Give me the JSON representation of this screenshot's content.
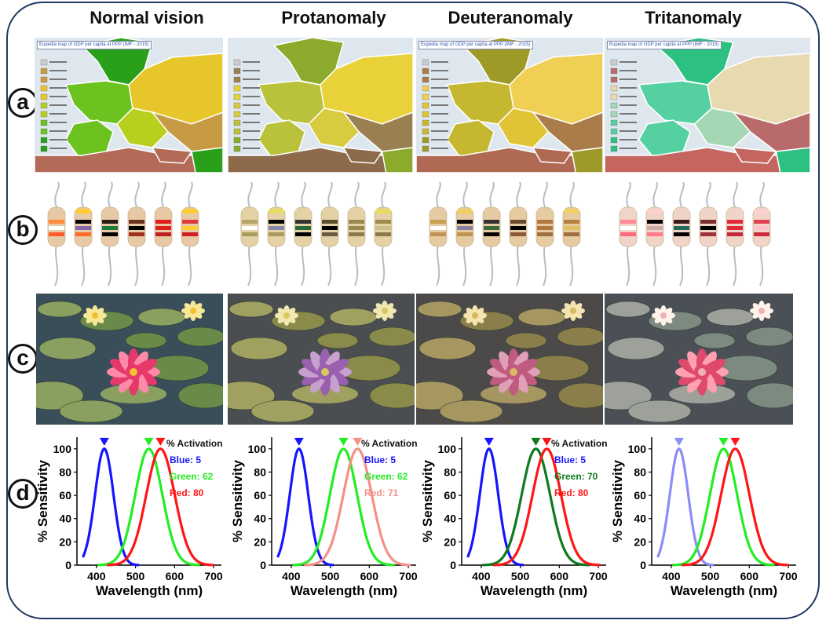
{
  "figure": {
    "columns": [
      {
        "id": "normal",
        "title": "Normal vision"
      },
      {
        "id": "prot",
        "title": "Protanomaly"
      },
      {
        "id": "deut",
        "title": "Deuteranomaly"
      },
      {
        "id": "trit",
        "title": "Tritanomaly"
      }
    ],
    "row_labels": [
      "a",
      "b",
      "c",
      "d"
    ],
    "map_badges": [
      "Eupedia map of GDP per capita at PPP (IMF - 2015)",
      "",
      "Eupedia map of GDP per capita at PPP (IMF - 2015)",
      "Eupedia map of GDP per capita at PPP (IMF - 2015)"
    ],
    "colors": {
      "frame": "#1f3864",
      "normal": {
        "blue": "#1515ff",
        "green": "#22ee22",
        "red": "#ff1515",
        "land": [
          "#2aa01a",
          "#6cc21e",
          "#b8cf1e",
          "#e6c62a",
          "#c79b43",
          "#b36a57"
        ]
      },
      "prot": {
        "blue": "#1515ff",
        "green": "#22ee22",
        "red": "#f49088",
        "land": [
          "#8cab2c",
          "#b9c23a",
          "#d7cb40",
          "#e9d13a",
          "#9a8050",
          "#8c6a4a"
        ]
      },
      "deut": {
        "blue": "#1515ff",
        "green": "#0e7a1e",
        "red": "#ff1515",
        "land": [
          "#9e9a28",
          "#c6b730",
          "#e1c435",
          "#f0cf55",
          "#a97c4a",
          "#b06a54"
        ]
      },
      "trit": {
        "blue": "#8c8cf6",
        "green": "#22ee22",
        "red": "#ff1515",
        "land": [
          "#2cc081",
          "#55d1a1",
          "#a4d8b4",
          "#e8dab0",
          "#b96b6b",
          "#c56560"
        ]
      }
    }
  },
  "chart_data": [
    {
      "type": "line",
      "panel": "Normal vision",
      "title": "",
      "xlabel": "Wavelength (nm)",
      "ylabel": "% Sensitivity",
      "xlim": [
        350,
        720
      ],
      "ylim": [
        0,
        110
      ],
      "xticks": [
        400,
        500,
        600,
        700
      ],
      "yticks": [
        0,
        20,
        40,
        60,
        80,
        100
      ],
      "series": [
        {
          "name": "Blue",
          "peak": 420,
          "width": 30
        },
        {
          "name": "Green",
          "peak": 534,
          "width": 44
        },
        {
          "name": "Red",
          "peak": 564,
          "width": 46
        }
      ],
      "legend": {
        "title": "% Activation",
        "entries": [
          "Blue: 5",
          "Green: 62",
          "Red: 80"
        ]
      }
    },
    {
      "type": "line",
      "panel": "Protanomaly",
      "title": "",
      "xlabel": "Wavelength (nm)",
      "ylabel": "% Sensitivity",
      "xlim": [
        350,
        720
      ],
      "ylim": [
        0,
        110
      ],
      "xticks": [
        400,
        500,
        600,
        700
      ],
      "yticks": [
        0,
        20,
        40,
        60,
        80,
        100
      ],
      "series": [
        {
          "name": "Blue",
          "peak": 420,
          "width": 30
        },
        {
          "name": "Green",
          "peak": 534,
          "width": 44
        },
        {
          "name": "Red",
          "peak": 570,
          "width": 46
        }
      ],
      "legend": {
        "title": "% Activation",
        "entries": [
          "Blue: 5",
          "Green: 62",
          "Red: 71"
        ]
      }
    },
    {
      "type": "line",
      "panel": "Deuteranomaly",
      "title": "",
      "xlabel": "Wavelength (nm)",
      "ylabel": "% Sensitivity",
      "xlim": [
        350,
        720
      ],
      "ylim": [
        0,
        110
      ],
      "xticks": [
        400,
        500,
        600,
        700
      ],
      "yticks": [
        0,
        20,
        40,
        60,
        80,
        100
      ],
      "series": [
        {
          "name": "Blue",
          "peak": 420,
          "width": 30
        },
        {
          "name": "Green",
          "peak": 540,
          "width": 46
        },
        {
          "name": "Red",
          "peak": 568,
          "width": 46
        }
      ],
      "legend": {
        "title": "% Activation",
        "entries": [
          "Blue: 5",
          "Green: 70",
          "Red: 80"
        ]
      }
    },
    {
      "type": "line",
      "panel": "Tritanomaly",
      "title": "",
      "xlabel": "Wavelength (nm)",
      "ylabel": "% Sensitivity",
      "xlim": [
        350,
        720
      ],
      "ylim": [
        0,
        110
      ],
      "xticks": [
        400,
        500,
        600,
        700
      ],
      "yticks": [
        0,
        20,
        40,
        60,
        80,
        100
      ],
      "series": [
        {
          "name": "Blue",
          "peak": 420,
          "width": 30
        },
        {
          "name": "Green",
          "peak": 534,
          "width": 44
        },
        {
          "name": "Red",
          "peak": 564,
          "width": 46
        }
      ],
      "legend": {
        "title": "",
        "entries": []
      }
    }
  ]
}
